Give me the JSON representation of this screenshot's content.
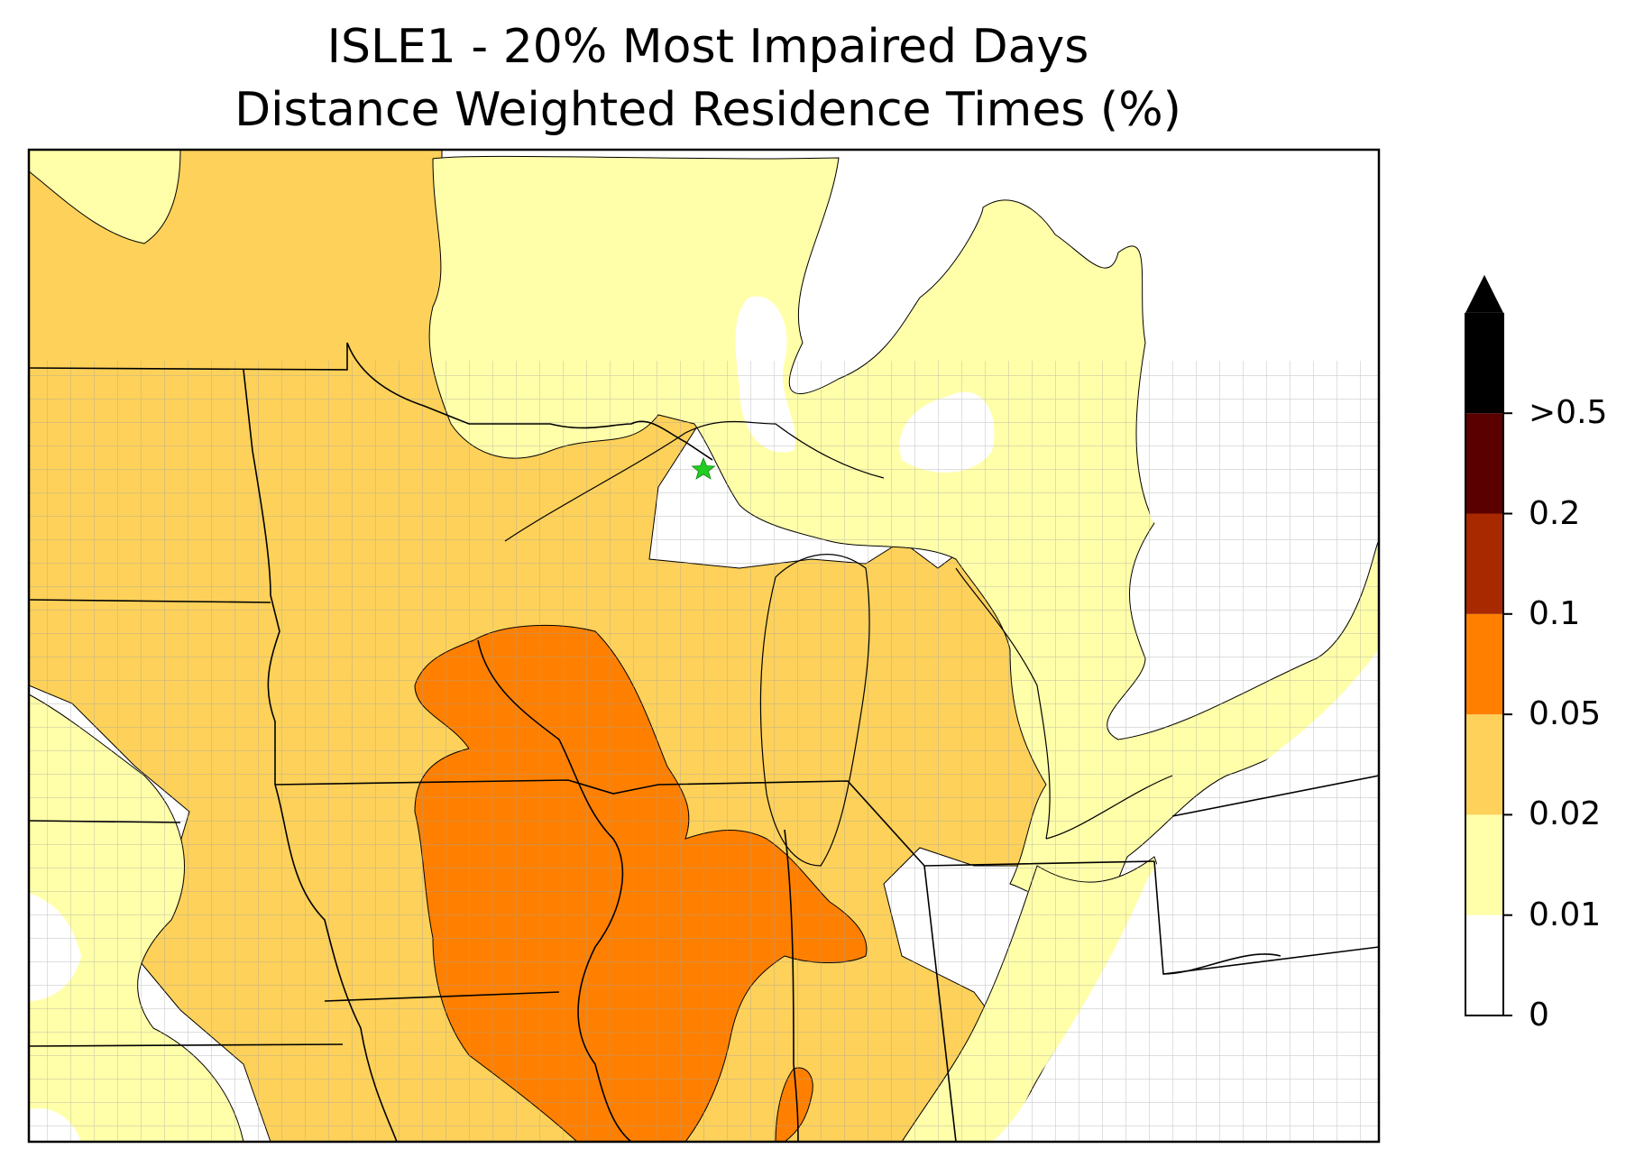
{
  "title": {
    "line1": "ISLE1 - 20% Most Impaired Days",
    "line2": "Distance Weighted Residence Times (%)"
  },
  "site_marker": {
    "icon": "star-icon",
    "color": "#22cc22"
  },
  "colorbar": {
    "extend_top": true,
    "labels": [
      "0",
      "0.01",
      "0.02",
      "0.05",
      "0.1",
      "0.2",
      ">0.5"
    ],
    "bins": [
      {
        "range": "0-0.01",
        "color": "#ffffff"
      },
      {
        "range": "0.01-0.02",
        "color": "#ffffaa"
      },
      {
        "range": "0.02-0.05",
        "color": "#fdd15a"
      },
      {
        "range": "0.05-0.1",
        "color": "#ff8000"
      },
      {
        "range": "0.1-0.2",
        "color": "#a82800"
      },
      {
        "range": "0.2-0.5",
        "color": "#5a0000"
      },
      {
        "range": ">0.5",
        "color": "#000000"
      }
    ]
  },
  "colors": {
    "level1": "#ffffaa",
    "level2": "#fdd15a",
    "level3": "#ff8000",
    "county_lines": "#a0a0a0",
    "state_lines": "#000000"
  }
}
